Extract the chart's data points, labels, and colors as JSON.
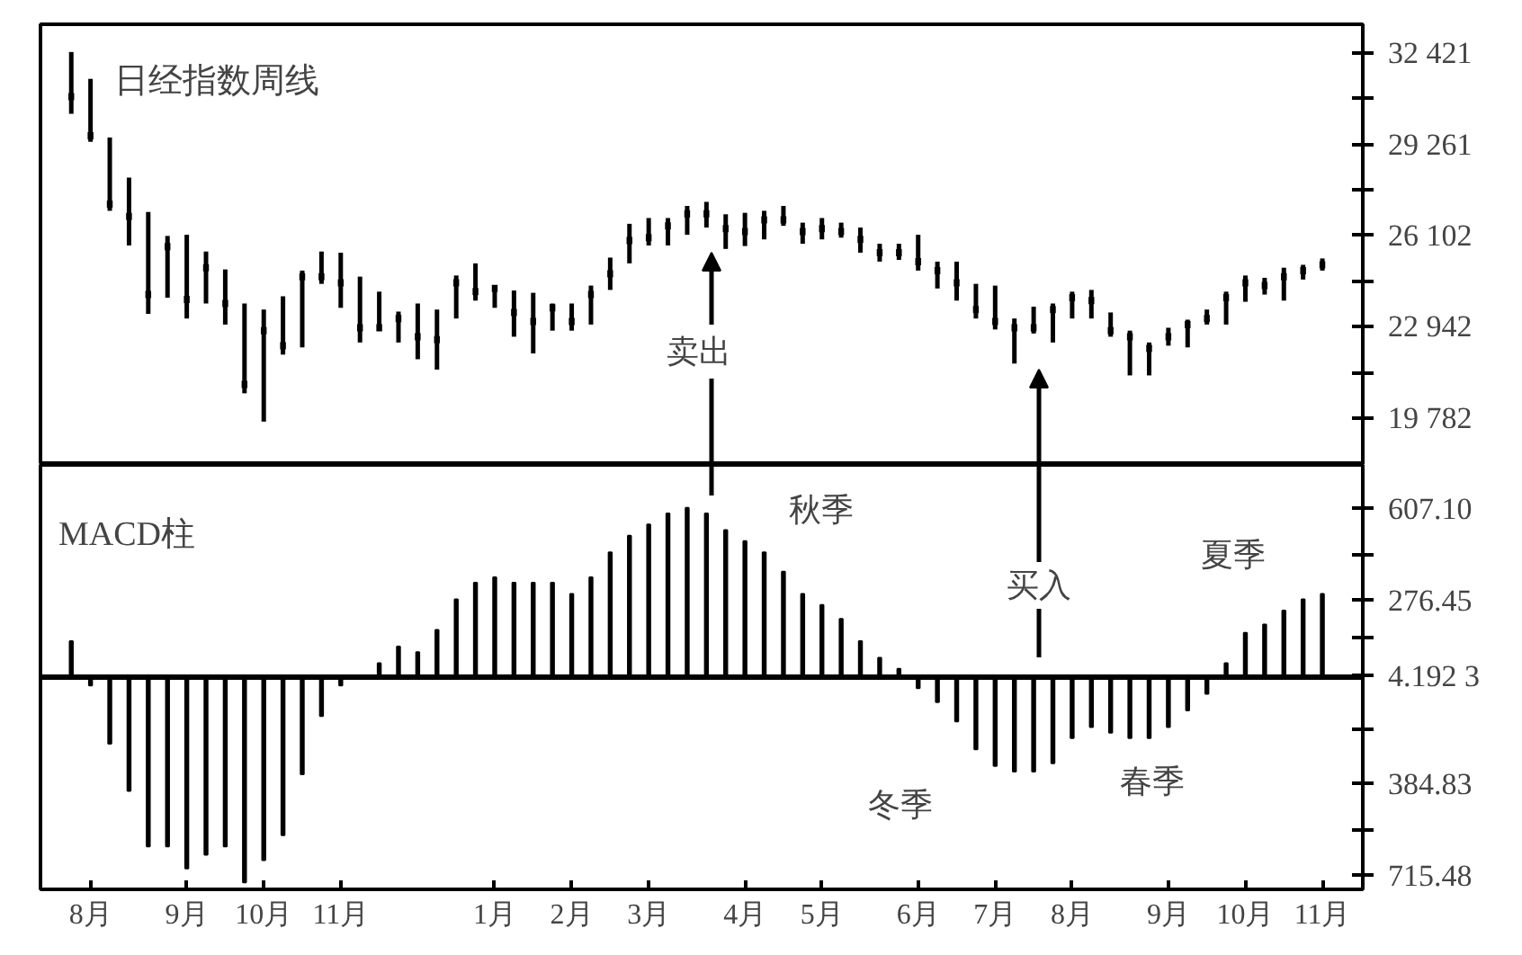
{
  "chart_data": [
    {
      "type": "candlestick",
      "title": "日经指数周线",
      "categories": [
        null,
        null,
        null,
        null,
        null,
        null,
        null,
        null,
        null,
        null,
        null,
        null,
        null,
        null,
        null,
        null,
        null,
        null,
        null,
        null,
        null,
        null,
        null,
        null,
        null,
        null,
        null,
        null,
        null,
        null,
        null,
        null,
        null,
        null,
        null,
        null,
        null,
        null,
        null,
        null,
        null,
        null,
        null,
        null,
        null,
        null,
        null,
        null,
        null,
        null,
        null,
        null,
        null,
        null,
        null,
        null,
        null,
        null,
        null,
        null,
        null,
        null,
        null,
        null,
        null,
        null
      ],
      "ohlc": [
        [
          30910,
          32460,
          30320,
          30910
        ],
        [
          29560,
          31530,
          29350,
          29560
        ],
        [
          27190,
          29500,
          26960,
          27190
        ],
        [
          26760,
          28110,
          25760,
          26760
        ],
        [
          24060,
          26920,
          23390,
          24060
        ],
        [
          25720,
          26090,
          23950,
          25720
        ],
        [
          23890,
          26130,
          23230,
          23890
        ],
        [
          24990,
          25550,
          23750,
          24990
        ],
        [
          23750,
          24930,
          23020,
          23750
        ],
        [
          20950,
          23750,
          20640,
          20950
        ],
        [
          22810,
          23540,
          19660,
          22810
        ],
        [
          22290,
          24000,
          21980,
          22290
        ],
        [
          24680,
          24890,
          22230,
          24680
        ],
        [
          24680,
          25550,
          24430,
          24680
        ],
        [
          24470,
          25510,
          23600,
          24470
        ],
        [
          22910,
          24680,
          22400,
          22910
        ],
        [
          22910,
          24160,
          22810,
          22910
        ],
        [
          23230,
          23470,
          22400,
          23230
        ],
        [
          22600,
          23750,
          21820,
          22600
        ],
        [
          22500,
          23540,
          21460,
          22500
        ],
        [
          24470,
          24720,
          23230,
          24470
        ],
        [
          24160,
          25140,
          23850,
          24160
        ],
        [
          24270,
          24370,
          23600,
          24270
        ],
        [
          23440,
          24200,
          22600,
          23440
        ],
        [
          23130,
          24120,
          22020,
          23130
        ],
        [
          23600,
          23750,
          22810,
          23600
        ],
        [
          23130,
          23750,
          22810,
          23130
        ],
        [
          24060,
          24370,
          23020,
          24060
        ],
        [
          24780,
          25340,
          24220,
          24780
        ],
        [
          25930,
          26510,
          25140,
          25930
        ],
        [
          26030,
          26710,
          25760,
          26030
        ],
        [
          26440,
          26710,
          25760,
          26440
        ],
        [
          26860,
          27130,
          26130,
          26860
        ],
        [
          26860,
          27270,
          26380,
          26860
        ],
        [
          26340,
          26840,
          25640,
          26340
        ],
        [
          26240,
          26890,
          25740,
          26240
        ],
        [
          26650,
          26960,
          25970,
          26650
        ],
        [
          26650,
          27130,
          26440,
          26650
        ],
        [
          26240,
          26550,
          25820,
          26240
        ],
        [
          26340,
          26710,
          25970,
          26340
        ],
        [
          26240,
          26550,
          26030,
          26240
        ],
        [
          25970,
          26380,
          25510,
          25970
        ],
        [
          25510,
          25820,
          25200,
          25510
        ],
        [
          25510,
          25820,
          25260,
          25510
        ],
        [
          25200,
          26130,
          24890,
          25200
        ],
        [
          24890,
          25200,
          24270,
          24890
        ],
        [
          24470,
          25200,
          23850,
          24470
        ],
        [
          23540,
          24430,
          23230,
          23540
        ],
        [
          23130,
          24370,
          22850,
          23130
        ],
        [
          22910,
          23230,
          21670,
          22910
        ],
        [
          22910,
          23640,
          22710,
          22910
        ],
        [
          23540,
          23750,
          22400,
          23540
        ],
        [
          23950,
          24160,
          23230,
          23950
        ],
        [
          23850,
          24220,
          23230,
          23850
        ],
        [
          22810,
          23440,
          22600,
          22810
        ],
        [
          22600,
          22810,
          21260,
          22600
        ],
        [
          22190,
          22400,
          21260,
          22190
        ],
        [
          22600,
          22910,
          22290,
          22600
        ],
        [
          23020,
          23190,
          22230,
          23020
        ],
        [
          23230,
          23540,
          23020,
          23230
        ],
        [
          23950,
          24160,
          23020,
          23950
        ],
        [
          24470,
          24720,
          23810,
          24470
        ],
        [
          24370,
          24640,
          24060,
          24370
        ],
        [
          24680,
          24990,
          23850,
          24680
        ],
        [
          24890,
          25090,
          24580,
          24890
        ],
        [
          25090,
          25310,
          24890,
          25090
        ]
      ],
      "ylim": [
        18160,
        33420
      ],
      "yticks": [
        {
          "value": 32421,
          "label": "32 421"
        },
        {
          "value": 30841,
          "label": null
        },
        {
          "value": 29261,
          "label": "29 261"
        },
        {
          "value": 27681.5,
          "label": null
        },
        {
          "value": 26102,
          "label": "26 102"
        },
        {
          "value": 24522,
          "label": null
        },
        {
          "value": 22942,
          "label": "22 942"
        },
        {
          "value": 21362,
          "label": null
        },
        {
          "value": 19782,
          "label": "19 782"
        }
      ],
      "tick_labels": "y",
      "annotations": [
        "卖出"
      ]
    },
    {
      "type": "bar",
      "title": "MACD柱",
      "categories": [
        null,
        "8月",
        null,
        null,
        null,
        null,
        "9月",
        null,
        null,
        null,
        "10月",
        null,
        null,
        null,
        "11月",
        null,
        null,
        null,
        null,
        null,
        null,
        null,
        "1月",
        null,
        null,
        null,
        "2月",
        null,
        null,
        null,
        "3月",
        null,
        null,
        null,
        null,
        "4月",
        null,
        null,
        null,
        "5月",
        null,
        null,
        null,
        null,
        "6月",
        null,
        null,
        null,
        "7月",
        null,
        null,
        null,
        "8月",
        null,
        null,
        null,
        null,
        "9月",
        null,
        null,
        null,
        "10月",
        null,
        null,
        null,
        "11月"
      ],
      "values": [
        130,
        -30,
        -240,
        -410,
        -610,
        -610,
        -690,
        -640,
        -610,
        -740,
        -660,
        -570,
        -350,
        -140,
        -30,
        0,
        50,
        110,
        90,
        170,
        280,
        340,
        360,
        340,
        340,
        340,
        300,
        360,
        450,
        510,
        550,
        590,
        610,
        590,
        530,
        490,
        450,
        380,
        300,
        260,
        210,
        130,
        70,
        30,
        -40,
        -90,
        -160,
        -260,
        -320,
        -340,
        -340,
        -310,
        -220,
        -180,
        -200,
        -220,
        -220,
        -180,
        -120,
        -60,
        50,
        160,
        190,
        240,
        280,
        300
      ],
      "color": "#000000",
      "ylim": [
        -765,
        765
      ],
      "yticks": [
        {
          "value": 607.1,
          "label": "607.10"
        },
        {
          "value": 441.8,
          "label": null
        },
        {
          "value": 276.45,
          "label": "276.45"
        },
        {
          "value": 140.3,
          "label": null
        },
        {
          "value": 4.1923,
          "label": "4.192 3"
        },
        {
          "value": -190.3,
          "label": null
        },
        {
          "value": -384.83,
          "label": "384.83"
        },
        {
          "value": -550.2,
          "label": null
        },
        {
          "value": -715.48,
          "label": "715.48"
        }
      ],
      "ref_lines": [
        {
          "axis": "y",
          "value": 0
        }
      ],
      "annotations": [
        "买入",
        "秋季",
        "夏季",
        "冬季",
        "春季"
      ]
    }
  ]
}
